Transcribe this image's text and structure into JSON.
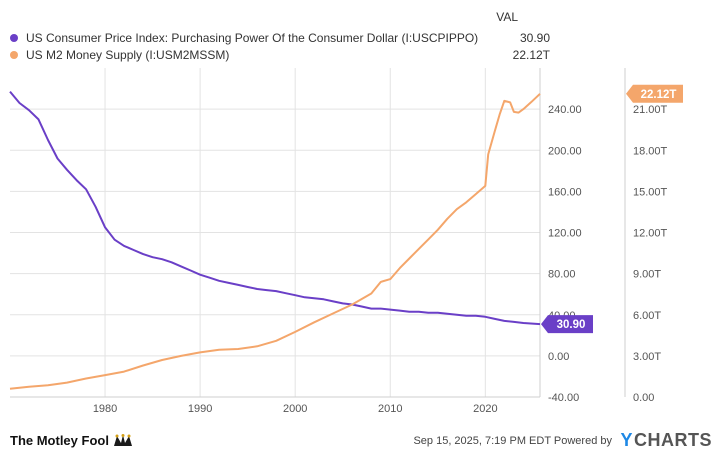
{
  "legend": {
    "header": "VAL",
    "items": [
      {
        "name": "US Consumer Price Index: Purchasing Power Of the Consumer Dollar (I:USCPIPPO)",
        "value": "30.90",
        "color": "#6a3fc7"
      },
      {
        "name": "US M2 Money Supply (I:USM2MSSM)",
        "value": "22.12T",
        "color": "#f4a66b"
      }
    ]
  },
  "chart_data": {
    "type": "line",
    "x_ticks": [
      "1980",
      "1990",
      "2000",
      "2010",
      "2020"
    ],
    "x_range": [
      1970.0,
      2025.75
    ],
    "left_axis": {
      "ticks": [
        "-40.00",
        "0.00",
        "40.00",
        "80.00",
        "120.00",
        "160.00",
        "200.00",
        "240.00"
      ],
      "range": [
        -40,
        280
      ]
    },
    "right_axis": {
      "ticks": [
        "0.00",
        "3.00T",
        "6.00T",
        "9.00T",
        "12.00T",
        "15.00T",
        "18.00T",
        "21.00T"
      ],
      "range": [
        0,
        24
      ],
      "unit": "T"
    },
    "grid": true,
    "series": [
      {
        "name": "US Consumer Price Index: Purchasing Power Of the Consumer Dollar (I:USCPIPPO)",
        "axis": "left",
        "color": "#6a3fc7",
        "end_label": "30.90",
        "points": [
          [
            1970,
            257
          ],
          [
            1971,
            246
          ],
          [
            1972,
            239
          ],
          [
            1973,
            230
          ],
          [
            1974,
            210
          ],
          [
            1975,
            192
          ],
          [
            1976,
            181
          ],
          [
            1977,
            171
          ],
          [
            1978,
            162
          ],
          [
            1979,
            145
          ],
          [
            1980,
            125
          ],
          [
            1981,
            113
          ],
          [
            1982,
            107
          ],
          [
            1983,
            103
          ],
          [
            1984,
            99
          ],
          [
            1985,
            96
          ],
          [
            1986,
            94
          ],
          [
            1987,
            91
          ],
          [
            1988,
            87
          ],
          [
            1989,
            83
          ],
          [
            1990,
            79
          ],
          [
            1991,
            76
          ],
          [
            1992,
            73
          ],
          [
            1993,
            71
          ],
          [
            1994,
            69
          ],
          [
            1995,
            67
          ],
          [
            1996,
            65
          ],
          [
            1997,
            64
          ],
          [
            1998,
            63
          ],
          [
            1999,
            61
          ],
          [
            2000,
            59
          ],
          [
            2001,
            57
          ],
          [
            2002,
            56
          ],
          [
            2003,
            55
          ],
          [
            2004,
            53
          ],
          [
            2005,
            51
          ],
          [
            2006,
            50
          ],
          [
            2007,
            48
          ],
          [
            2008,
            46
          ],
          [
            2009,
            46
          ],
          [
            2010,
            45
          ],
          [
            2011,
            44
          ],
          [
            2012,
            43
          ],
          [
            2013,
            43
          ],
          [
            2014,
            42
          ],
          [
            2015,
            42
          ],
          [
            2016,
            41
          ],
          [
            2017,
            40
          ],
          [
            2018,
            39
          ],
          [
            2019,
            39
          ],
          [
            2020,
            38
          ],
          [
            2021,
            36
          ],
          [
            2022,
            34
          ],
          [
            2023,
            33
          ],
          [
            2024,
            32
          ],
          [
            2025.75,
            30.9
          ]
        ]
      },
      {
        "name": "US M2 Money Supply (I:USM2MSSM)",
        "axis": "right",
        "color": "#f4a66b",
        "end_label": "22.12T",
        "points": [
          [
            1970,
            0.6
          ],
          [
            1972,
            0.75
          ],
          [
            1974,
            0.85
          ],
          [
            1976,
            1.05
          ],
          [
            1978,
            1.35
          ],
          [
            1980,
            1.6
          ],
          [
            1982,
            1.85
          ],
          [
            1984,
            2.3
          ],
          [
            1986,
            2.7
          ],
          [
            1988,
            3.0
          ],
          [
            1990,
            3.25
          ],
          [
            1992,
            3.45
          ],
          [
            1994,
            3.5
          ],
          [
            1996,
            3.7
          ],
          [
            1998,
            4.1
          ],
          [
            2000,
            4.75
          ],
          [
            2002,
            5.45
          ],
          [
            2004,
            6.1
          ],
          [
            2006,
            6.75
          ],
          [
            2008,
            7.55
          ],
          [
            2009,
            8.4
          ],
          [
            2010,
            8.6
          ],
          [
            2011,
            9.4
          ],
          [
            2012,
            10.1
          ],
          [
            2013,
            10.8
          ],
          [
            2014,
            11.5
          ],
          [
            2015,
            12.2
          ],
          [
            2016,
            13.0
          ],
          [
            2017,
            13.7
          ],
          [
            2018,
            14.2
          ],
          [
            2019,
            14.8
          ],
          [
            2020,
            15.4
          ],
          [
            2020.3,
            17.7
          ],
          [
            2021,
            19.4
          ],
          [
            2021.5,
            20.6
          ],
          [
            2022,
            21.6
          ],
          [
            2022.6,
            21.5
          ],
          [
            2023,
            20.8
          ],
          [
            2023.5,
            20.75
          ],
          [
            2024,
            21.0
          ],
          [
            2024.8,
            21.5
          ],
          [
            2025.75,
            22.12
          ]
        ]
      }
    ]
  },
  "footer": {
    "brand": "The Motley Fool",
    "timestamp": "Sep 15, 2025, 7:19 PM EDT",
    "powered_by": "Powered by",
    "ycharts_y": "Y",
    "ycharts_rest": "CHARTS"
  }
}
